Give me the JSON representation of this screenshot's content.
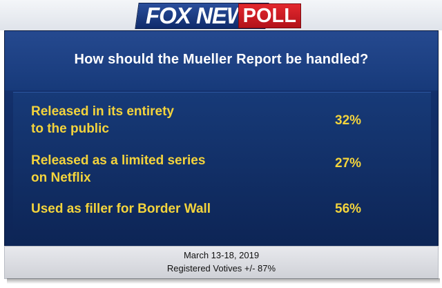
{
  "brand": {
    "fox_news": "FOX NEWS",
    "poll": "POLL"
  },
  "chart_data": {
    "type": "table",
    "title": "How should the Mueller Report be handled?",
    "rows": [
      {
        "label_lines": [
          "Released in its entirety",
          "to the public"
        ],
        "value": "32%"
      },
      {
        "label_lines": [
          "Released as a limited series",
          "on Netflix"
        ],
        "value": "27%"
      },
      {
        "label_lines": [
          "Used as filler for Border Wall"
        ],
        "value": "56%"
      }
    ]
  },
  "footer": {
    "date": "March 13-18, 2019",
    "sample": "Registered Votives +/- 87%"
  },
  "colors": {
    "panel_blue": "#13306b",
    "answer_yellow": "#f4d43c",
    "fox_blue": "#1b3d84",
    "poll_red": "#d01f26"
  }
}
